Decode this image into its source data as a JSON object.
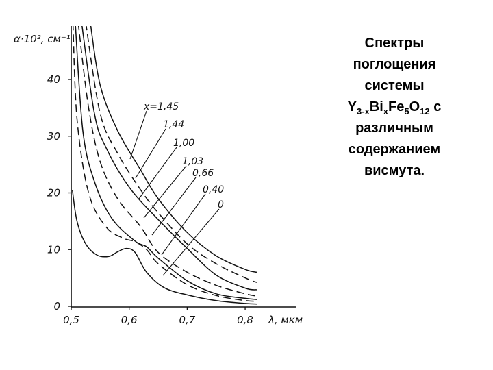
{
  "caption": {
    "line1": "Спектры",
    "line2": "поглощения",
    "line3": "системы",
    "formula": {
      "p1": "Y",
      "s1": "3-x",
      "p2": "Bi",
      "s2": "x",
      "p3": "Fe",
      "s3": "5",
      "p4": "O",
      "s4": "12",
      "p5": " с"
    },
    "line5": "различным",
    "line6": "содержанием",
    "line7": "висмута."
  },
  "chart_data": {
    "type": "line",
    "ylabel": "α·10², см⁻¹",
    "xlabel": "λ, мкм",
    "xlim": [
      0.5,
      0.82
    ],
    "ylim": [
      0,
      40
    ],
    "x_ticks": [
      {
        "value": 0.5,
        "label": "0,5"
      },
      {
        "value": 0.6,
        "label": "0,6"
      },
      {
        "value": 0.7,
        "label": "0,7"
      },
      {
        "value": 0.8,
        "label": "0,8"
      }
    ],
    "y_ticks": [
      {
        "value": 0,
        "label": "0"
      },
      {
        "value": 10,
        "label": "10"
      },
      {
        "value": 20,
        "label": "20"
      },
      {
        "value": 30,
        "label": "30"
      },
      {
        "value": 40,
        "label": "40"
      }
    ],
    "series": [
      {
        "name": "x=1,45",
        "dash": false,
        "points": [
          [
            0.533,
            50
          ],
          [
            0.55,
            39
          ],
          [
            0.58,
            31
          ],
          [
            0.62,
            24
          ],
          [
            0.65,
            19
          ],
          [
            0.7,
            13
          ],
          [
            0.75,
            8.9
          ],
          [
            0.8,
            6.5
          ],
          [
            0.82,
            6
          ]
        ]
      },
      {
        "name": "1,44",
        "dash": true,
        "points": [
          [
            0.525,
            50
          ],
          [
            0.55,
            34
          ],
          [
            0.58,
            27
          ],
          [
            0.62,
            20.5
          ],
          [
            0.65,
            16.5
          ],
          [
            0.7,
            11
          ],
          [
            0.75,
            7.5
          ],
          [
            0.8,
            5
          ],
          [
            0.82,
            4.2
          ]
        ]
      },
      {
        "name": "1,00",
        "dash": false,
        "points": [
          [
            0.518,
            50
          ],
          [
            0.54,
            34
          ],
          [
            0.56,
            28
          ],
          [
            0.6,
            21
          ],
          [
            0.65,
            15.3
          ],
          [
            0.7,
            10.2
          ],
          [
            0.75,
            5.5
          ],
          [
            0.8,
            3.2
          ],
          [
            0.82,
            2.9
          ]
        ]
      },
      {
        "name": "1,03",
        "dash": true,
        "points": [
          [
            0.512,
            50
          ],
          [
            0.53,
            35
          ],
          [
            0.55,
            25.5
          ],
          [
            0.58,
            19
          ],
          [
            0.62,
            14
          ],
          [
            0.65,
            9.5
          ],
          [
            0.7,
            6
          ],
          [
            0.75,
            3.7
          ],
          [
            0.8,
            2.2
          ],
          [
            0.82,
            1.8
          ]
        ]
      },
      {
        "name": "0,66",
        "dash": false,
        "points": [
          [
            0.507,
            50
          ],
          [
            0.52,
            31
          ],
          [
            0.54,
            22
          ],
          [
            0.57,
            15.5
          ],
          [
            0.61,
            11.5
          ],
          [
            0.63,
            10.5
          ],
          [
            0.65,
            8.5
          ],
          [
            0.7,
            4.5
          ],
          [
            0.75,
            2.2
          ],
          [
            0.8,
            1.4
          ],
          [
            0.82,
            1.2
          ]
        ]
      },
      {
        "name": "0,40",
        "dash": true,
        "points": [
          [
            0.503,
            50
          ],
          [
            0.51,
            33
          ],
          [
            0.53,
            20
          ],
          [
            0.56,
            14
          ],
          [
            0.59,
            12
          ],
          [
            0.61,
            11.4
          ],
          [
            0.63,
            10
          ],
          [
            0.65,
            7.5
          ],
          [
            0.7,
            3.8
          ],
          [
            0.75,
            1.9
          ],
          [
            0.8,
            1
          ],
          [
            0.82,
            0.9
          ]
        ]
      },
      {
        "name": "0",
        "dash": false,
        "points": [
          [
            0.502,
            20.5
          ],
          [
            0.51,
            15
          ],
          [
            0.525,
            11
          ],
          [
            0.545,
            9
          ],
          [
            0.565,
            8.8
          ],
          [
            0.58,
            9.6
          ],
          [
            0.595,
            10.2
          ],
          [
            0.61,
            9.5
          ],
          [
            0.63,
            6
          ],
          [
            0.66,
            3.3
          ],
          [
            0.7,
            2
          ],
          [
            0.75,
            1
          ],
          [
            0.8,
            0.5
          ],
          [
            0.82,
            0.4
          ]
        ]
      }
    ]
  }
}
